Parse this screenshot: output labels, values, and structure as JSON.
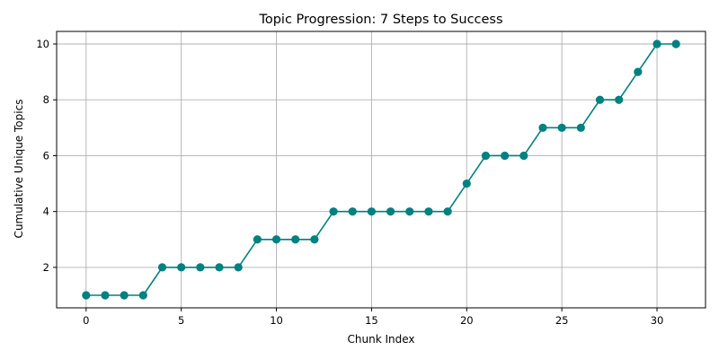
{
  "chart_data": {
    "type": "line",
    "title": "Topic Progression: 7 Steps to Success",
    "xlabel": "Chunk Index",
    "ylabel": "Cumulative Unique Topics",
    "x": [
      0,
      1,
      2,
      3,
      4,
      5,
      6,
      7,
      8,
      9,
      10,
      11,
      12,
      13,
      14,
      15,
      16,
      17,
      18,
      19,
      20,
      21,
      22,
      23,
      24,
      25,
      26,
      27,
      28,
      29,
      30,
      31
    ],
    "series": [
      {
        "values": [
          1,
          1,
          1,
          1,
          2,
          2,
          2,
          2,
          2,
          3,
          3,
          3,
          3,
          4,
          4,
          4,
          4,
          4,
          4,
          4,
          5,
          6,
          6,
          6,
          7,
          7,
          7,
          8,
          8,
          9,
          10,
          10
        ],
        "color": "#008080",
        "marker": "circle"
      }
    ],
    "xlim": [
      -1.55,
      32.55
    ],
    "ylim": [
      0.55,
      10.45
    ],
    "xticks": [
      0,
      5,
      10,
      15,
      20,
      25,
      30
    ],
    "yticks": [
      2,
      4,
      6,
      8,
      10
    ],
    "grid": true
  }
}
